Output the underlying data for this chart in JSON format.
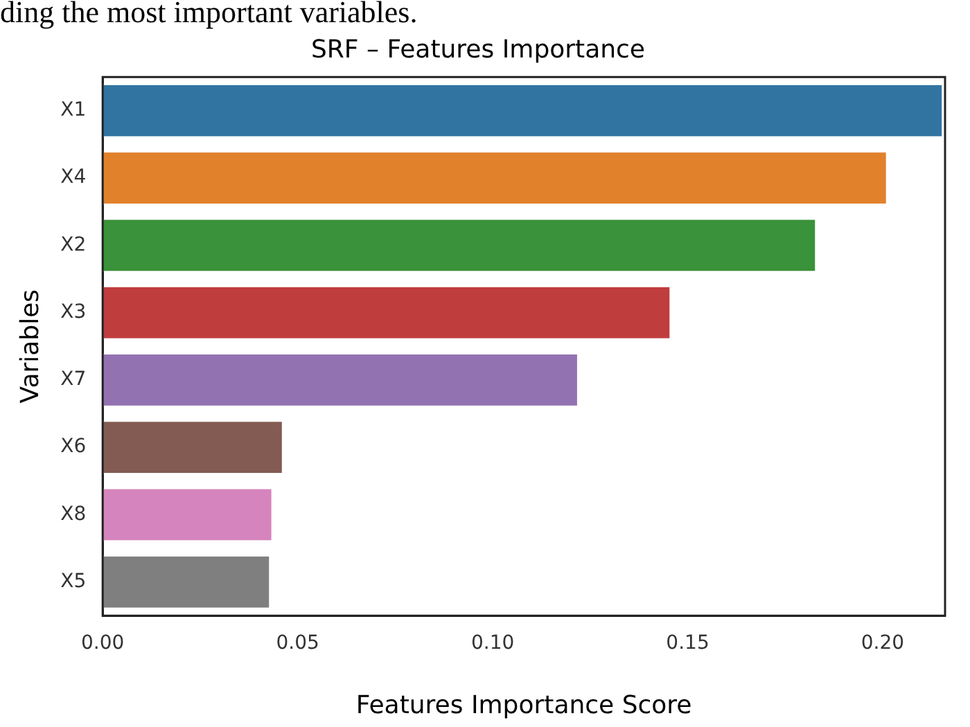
{
  "chart_data": {
    "type": "bar",
    "orientation": "horizontal",
    "title": "SRF – Features Importance",
    "xlabel": "Features Importance Score",
    "ylabel": "Variables",
    "annotations": [
      "ding the most important variables."
    ],
    "categories": [
      "X1",
      "X4",
      "X2",
      "X3",
      "X7",
      "X6",
      "X8",
      "X5"
    ],
    "values": [
      0.2155,
      0.2012,
      0.183,
      0.1457,
      0.122,
      0.0463,
      0.0436,
      0.043
    ],
    "colors": [
      "#3274a1",
      "#e1812c",
      "#3a923a",
      "#c03d3e",
      "#9372b2",
      "#845b53",
      "#d684bd",
      "#7f7f7f"
    ],
    "xlim": [
      0,
      0.216
    ],
    "xticks": [
      {
        "value": 0,
        "label": "0.00"
      },
      {
        "value": 0.05,
        "label": "0.05"
      },
      {
        "value": 0.1,
        "label": "0.10"
      },
      {
        "value": 0.15,
        "label": "0.15"
      },
      {
        "value": 0.2,
        "label": "0.20"
      }
    ],
    "grid": false,
    "legend": false
  }
}
